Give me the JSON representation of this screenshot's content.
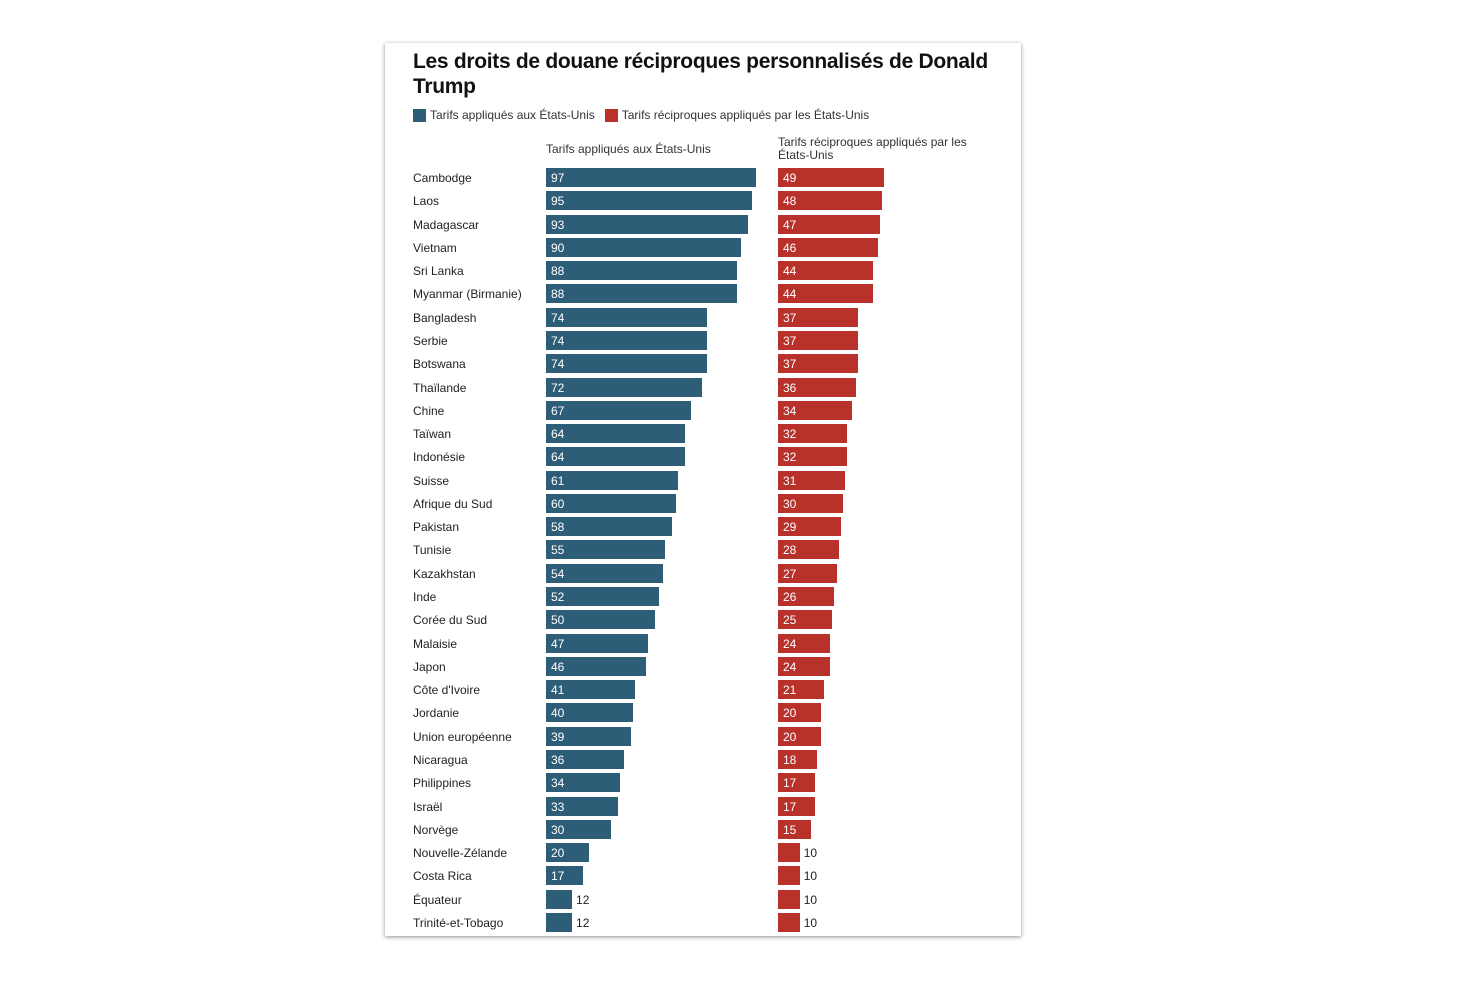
{
  "chart_data": {
    "type": "bar",
    "title": "Les droits de douane réciproques personnalisés de Donald Trump",
    "legend": [
      {
        "name": "Tarifs appliqués aux États-Unis",
        "color": "#2e5d78"
      },
      {
        "name": "Tarifs réciproques appliqués par les États-Unis",
        "color": "#b8312b"
      }
    ],
    "legend_placement": "top-left",
    "grid": false,
    "categories": [
      "Cambodge",
      "Laos",
      "Madagascar",
      "Vietnam",
      "Sri Lanka",
      "Myanmar (Birmanie)",
      "Bangladesh",
      "Serbie",
      "Botswana",
      "Thaïlande",
      "Chine",
      "Taïwan",
      "Indonésie",
      "Suisse",
      "Afrique du Sud",
      "Pakistan",
      "Tunisie",
      "Kazakhstan",
      "Inde",
      "Corée du Sud",
      "Malaisie",
      "Japon",
      "Côte d'Ivoire",
      "Jordanie",
      "Union européenne",
      "Nicaragua",
      "Philippines",
      "Israël",
      "Norvège",
      "Nouvelle-Zélande",
      "Costa Rica",
      "Équateur",
      "Trinité-et-Tobago"
    ],
    "series": [
      {
        "name": "Tarifs appliqués aux États-Unis",
        "color": "#2e5d78",
        "values": [
          97,
          95,
          93,
          90,
          88,
          88,
          74,
          74,
          74,
          72,
          67,
          64,
          64,
          61,
          60,
          58,
          55,
          54,
          52,
          50,
          47,
          46,
          41,
          40,
          39,
          36,
          34,
          33,
          30,
          20,
          17,
          12,
          12
        ]
      },
      {
        "name": "Tarifs réciproques appliqués par les États-Unis",
        "color": "#b8312b",
        "values": [
          49,
          48,
          47,
          46,
          44,
          44,
          37,
          37,
          37,
          36,
          34,
          32,
          32,
          31,
          30,
          29,
          28,
          27,
          26,
          25,
          24,
          24,
          21,
          20,
          20,
          18,
          17,
          17,
          15,
          10,
          10,
          10,
          10
        ]
      }
    ]
  }
}
